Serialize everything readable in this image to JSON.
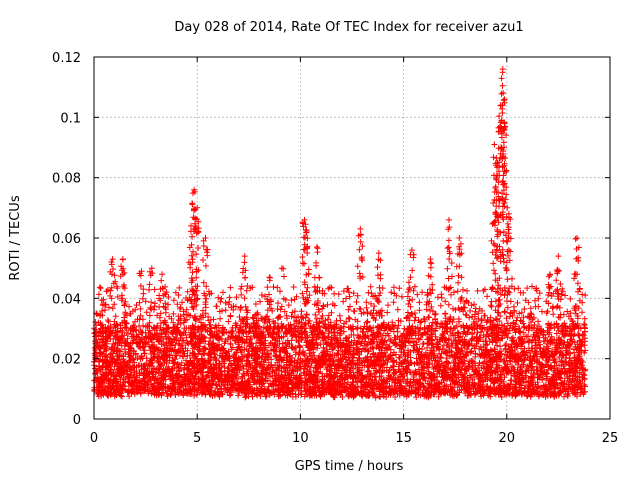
{
  "chart_data": {
    "type": "scatter",
    "title": "Day 028 of 2014, Rate Of TEC Index for receiver azu1",
    "xlabel": "GPS time / hours",
    "ylabel": "ROTI / TECUs",
    "xlim": [
      0,
      25
    ],
    "ylim": [
      0,
      0.12
    ],
    "x_ticks": [
      0,
      5,
      10,
      15,
      20,
      25
    ],
    "x_tick_labels": [
      "0",
      "5",
      "10",
      "15",
      "20",
      "25"
    ],
    "y_ticks": [
      0,
      0.02,
      0.04,
      0.06,
      0.08,
      0.1,
      0.12
    ],
    "y_tick_labels": [
      "0",
      "0.02",
      "0.04",
      "0.06",
      "0.08",
      "0.1",
      "0.12"
    ],
    "grid": true,
    "marker": "+",
    "color": "#ff0000",
    "x_range_observed": [
      0,
      23.8
    ],
    "typical_band": [
      0.008,
      0.03
    ],
    "peaks": [
      {
        "x": 0.9,
        "y": 0.053
      },
      {
        "x": 1.4,
        "y": 0.053
      },
      {
        "x": 2.3,
        "y": 0.049
      },
      {
        "x": 2.8,
        "y": 0.05
      },
      {
        "x": 3.3,
        "y": 0.048
      },
      {
        "x": 4.7,
        "y": 0.064
      },
      {
        "x": 4.85,
        "y": 0.076
      },
      {
        "x": 5.0,
        "y": 0.07
      },
      {
        "x": 5.4,
        "y": 0.06
      },
      {
        "x": 7.3,
        "y": 0.054
      },
      {
        "x": 8.5,
        "y": 0.047
      },
      {
        "x": 9.1,
        "y": 0.05
      },
      {
        "x": 10.2,
        "y": 0.066
      },
      {
        "x": 10.3,
        "y": 0.062
      },
      {
        "x": 10.8,
        "y": 0.057
      },
      {
        "x": 12.9,
        "y": 0.063
      },
      {
        "x": 13.8,
        "y": 0.055
      },
      {
        "x": 15.4,
        "y": 0.056
      },
      {
        "x": 16.3,
        "y": 0.053
      },
      {
        "x": 17.2,
        "y": 0.066
      },
      {
        "x": 17.7,
        "y": 0.06
      },
      {
        "x": 19.4,
        "y": 0.091
      },
      {
        "x": 19.55,
        "y": 0.085
      },
      {
        "x": 19.7,
        "y": 0.104
      },
      {
        "x": 19.8,
        "y": 0.116
      },
      {
        "x": 19.9,
        "y": 0.098
      },
      {
        "x": 20.1,
        "y": 0.068
      },
      {
        "x": 22.1,
        "y": 0.048
      },
      {
        "x": 22.5,
        "y": 0.054
      },
      {
        "x": 23.4,
        "y": 0.06
      }
    ]
  }
}
